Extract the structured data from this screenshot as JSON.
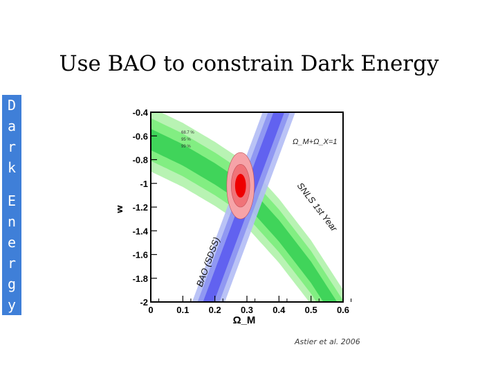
{
  "slide": {
    "title": "Use BAO to constrain Dark Energy",
    "side_letters": [
      "D",
      "a",
      "r",
      "k",
      "E",
      "n",
      "e",
      "r",
      "g",
      "y"
    ],
    "citation": "Astier et al. 2006"
  },
  "colors": {
    "side_bar": "#3f7fd8",
    "bao_outer": "#b3bcf5",
    "bao_mid": "#8c94f2",
    "bao_inner": "#5c5cf0",
    "snls_outer": "#b8f3b3",
    "snls_mid": "#82ee82",
    "snls_inner": "#40d45a",
    "joint_outer": "#f6a3a8",
    "joint_mid": "#f07378",
    "joint_inner": "#ee0000"
  },
  "chart_data": {
    "type": "contour",
    "xlabel": "Ω_M",
    "ylabel": "w",
    "xlim": [
      0,
      0.6
    ],
    "ylim": [
      -2,
      -0.4
    ],
    "xticks": [
      "0",
      "0.1",
      "0.2",
      "0.3",
      "0.4",
      "0.5",
      "0.6"
    ],
    "yticks": [
      "-0.4",
      "-0.6",
      "-0.8",
      "-1",
      "-1.2",
      "-1.4",
      "-1.6",
      "-1.8",
      "-2"
    ],
    "annotations": {
      "flat": "Ω_M+Ω_X=1",
      "snls": "SNLS 1st Year",
      "bao": "BAO (SDSS)",
      "confidence_levels": [
        "68.7 %",
        "95 %",
        "99 %"
      ]
    },
    "series": [
      {
        "name": "BAO (SDSS)",
        "center_line": [
          [
            0.18,
            -2.0
          ],
          [
            0.4,
            -0.4
          ]
        ],
        "band_half_width_omega": [
          0.017,
          0.034,
          0.051
        ]
      },
      {
        "name": "SNLS 1st Year",
        "center_line": [
          [
            0.0,
            -0.63
          ],
          [
            0.1,
            -0.76
          ],
          [
            0.2,
            -0.92
          ],
          [
            0.3,
            -1.1
          ],
          [
            0.4,
            -1.4
          ],
          [
            0.5,
            -1.75
          ],
          [
            0.56,
            -2.0
          ]
        ],
        "band_half_width_w": [
          0.09,
          0.18,
          0.27
        ]
      },
      {
        "name": "Joint",
        "center": [
          0.28,
          -1.02
        ],
        "radii_omega": [
          0.017,
          0.029,
          0.043
        ],
        "radii_w": [
          0.1,
          0.18,
          0.28
        ]
      }
    ]
  }
}
